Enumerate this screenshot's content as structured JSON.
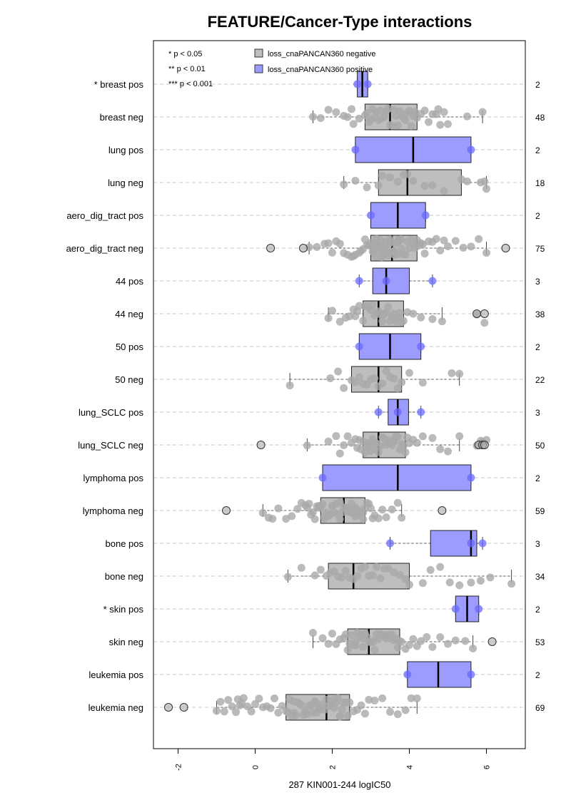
{
  "chart_data": {
    "type": "boxplot",
    "title": "FEATURE/Cancer-Type interactions",
    "xlabel": "287 KIN001-244 logIC50",
    "x_ticks": [
      "-2",
      "0",
      "2",
      "4",
      "6"
    ],
    "xlim": [
      -2.6,
      7.0
    ],
    "orientation": "horizontal",
    "grid": "horizontal dashed",
    "significance_legend": [
      "* p < 0.05",
      "** p < 0.01",
      "*** p < 0.001"
    ],
    "series_legend": [
      {
        "name": "loss_cnaPANCAN360 negative",
        "color": "#bebebe"
      },
      {
        "name": "loss_cnaPANCAN360 positive",
        "color": "#9c9cff"
      }
    ],
    "colors": {
      "negative_box": "#bebebe",
      "positive_box": "#9c9cff",
      "negative_point": "#a9a9a9",
      "positive_point": "#6868ff"
    },
    "groups": [
      {
        "label": "* breast pos",
        "n": "2",
        "status": "pos",
        "q1": 2.65,
        "median": 2.78,
        "q3": 2.92,
        "wlo": 2.65,
        "whi": 2.92,
        "points": [
          2.65,
          2.92
        ],
        "outliers": []
      },
      {
        "label": "breast neg",
        "n": "48",
        "status": "neg",
        "q1": 2.85,
        "median": 3.5,
        "q3": 4.2,
        "wlo": 1.5,
        "whi": 5.9,
        "points": [
          1.5,
          1.7,
          1.9,
          2.1,
          2.3,
          2.4,
          2.5,
          2.55,
          2.7,
          2.85,
          2.9,
          2.95,
          3.0,
          3.05,
          3.1,
          3.15,
          3.2,
          3.25,
          3.3,
          3.35,
          3.4,
          3.45,
          3.5,
          3.55,
          3.6,
          3.65,
          3.7,
          3.75,
          3.8,
          3.85,
          3.9,
          3.95,
          4.0,
          4.05,
          4.1,
          4.15,
          4.2,
          4.3,
          4.4,
          4.5,
          4.6,
          4.7,
          4.75,
          4.8,
          4.9,
          5.0,
          5.5,
          5.9
        ],
        "outliers": []
      },
      {
        "label": "lung pos",
        "n": "2",
        "status": "pos",
        "q1": 2.6,
        "median": 4.1,
        "q3": 5.6,
        "wlo": 2.6,
        "whi": 5.6,
        "points": [
          2.6,
          5.6
        ],
        "outliers": []
      },
      {
        "label": "lung neg",
        "n": "18",
        "status": "neg",
        "q1": 3.2,
        "median": 3.95,
        "q3": 5.35,
        "wlo": 2.3,
        "whi": 6.0,
        "points": [
          2.3,
          2.6,
          2.9,
          3.2,
          3.3,
          3.5,
          3.7,
          3.85,
          3.95,
          4.1,
          4.4,
          4.6,
          4.9,
          5.35,
          5.5,
          5.85,
          5.95,
          6.0
        ],
        "outliers": []
      },
      {
        "label": "aero_dig_tract pos",
        "n": "2",
        "status": "pos",
        "q1": 3.0,
        "median": 3.7,
        "q3": 4.42,
        "wlo": 3.0,
        "whi": 4.42,
        "points": [
          3.0,
          4.42
        ],
        "outliers": []
      },
      {
        "label": "aero_dig_tract neg",
        "n": "75",
        "status": "neg",
        "q1": 3.0,
        "median": 3.55,
        "q3": 4.2,
        "wlo": 1.4,
        "whi": 6.0,
        "points": [
          1.4,
          1.6,
          1.8,
          1.9,
          2.0,
          2.1,
          2.2,
          2.3,
          2.4,
          2.5,
          2.55,
          2.6,
          2.7,
          2.75,
          2.8,
          2.85,
          2.9,
          2.95,
          3.0,
          3.02,
          3.05,
          3.08,
          3.1,
          3.12,
          3.15,
          3.18,
          3.2,
          3.22,
          3.25,
          3.28,
          3.3,
          3.32,
          3.35,
          3.38,
          3.4,
          3.42,
          3.45,
          3.48,
          3.5,
          3.52,
          3.55,
          3.58,
          3.6,
          3.62,
          3.65,
          3.68,
          3.7,
          3.72,
          3.75,
          3.78,
          3.8,
          3.85,
          3.9,
          3.95,
          4.0,
          4.05,
          4.1,
          4.15,
          4.2,
          4.25,
          4.3,
          4.35,
          4.4,
          4.5,
          4.6,
          4.7,
          4.8,
          4.9,
          5.0,
          5.2,
          5.4,
          5.6,
          5.8,
          6.0,
          3.3
        ],
        "outliers": [
          0.4,
          1.25,
          6.5
        ]
      },
      {
        "label": "44 pos",
        "n": "3",
        "status": "pos",
        "q1": 3.05,
        "median": 3.4,
        "q3": 4.0,
        "wlo": 2.7,
        "whi": 4.6,
        "points": [
          2.7,
          3.4,
          4.6
        ],
        "outliers": []
      },
      {
        "label": "44 neg",
        "n": "38",
        "status": "neg",
        "q1": 2.8,
        "median": 3.2,
        "q3": 3.85,
        "wlo": 1.9,
        "whi": 4.85,
        "points": [
          1.9,
          2.0,
          2.2,
          2.35,
          2.45,
          2.55,
          2.65,
          2.7,
          2.8,
          2.85,
          2.9,
          2.95,
          3.0,
          3.05,
          3.1,
          3.15,
          3.2,
          3.25,
          3.3,
          3.35,
          3.4,
          3.45,
          3.5,
          3.55,
          3.6,
          3.65,
          3.7,
          3.75,
          3.8,
          3.85,
          3.95,
          4.1,
          4.3,
          4.6,
          4.85,
          5.75,
          5.95,
          2.6
        ],
        "outliers": [
          5.75,
          5.95
        ]
      },
      {
        "label": "50 pos",
        "n": "2",
        "status": "pos",
        "q1": 2.7,
        "median": 3.5,
        "q3": 4.3,
        "wlo": 2.7,
        "whi": 4.3,
        "points": [
          2.7,
          4.3
        ],
        "outliers": []
      },
      {
        "label": "50 neg",
        "n": "22",
        "status": "neg",
        "q1": 2.5,
        "median": 3.2,
        "q3": 3.8,
        "wlo": 0.9,
        "whi": 5.3,
        "points": [
          0.9,
          1.95,
          2.15,
          2.3,
          2.5,
          2.6,
          2.7,
          2.8,
          2.9,
          3.0,
          3.1,
          3.2,
          3.3,
          3.4,
          3.5,
          3.6,
          3.7,
          3.8,
          4.0,
          4.35,
          5.1,
          5.3
        ],
        "outliers": []
      },
      {
        "label": "lung_SCLC pos",
        "n": "3",
        "status": "pos",
        "q1": 3.45,
        "median": 3.7,
        "q3": 3.98,
        "wlo": 3.2,
        "whi": 4.3,
        "points": [
          3.2,
          3.7,
          4.3
        ],
        "outliers": []
      },
      {
        "label": "lung_SCLC neg",
        "n": "50",
        "status": "neg",
        "q1": 2.8,
        "median": 3.2,
        "q3": 3.9,
        "wlo": 1.35,
        "whi": 5.3,
        "points": [
          1.35,
          1.9,
          2.1,
          2.2,
          2.3,
          2.4,
          2.5,
          2.6,
          2.65,
          2.7,
          2.75,
          2.8,
          2.85,
          2.9,
          2.95,
          3.0,
          3.05,
          3.1,
          3.15,
          3.2,
          3.25,
          3.3,
          3.35,
          3.4,
          3.45,
          3.5,
          3.55,
          3.6,
          3.65,
          3.7,
          3.75,
          3.8,
          3.85,
          3.9,
          3.95,
          4.0,
          4.1,
          4.2,
          4.35,
          4.6,
          4.8,
          5.0,
          5.3,
          5.75,
          5.85,
          5.9,
          6.0,
          3.1,
          2.95,
          3.6
        ],
        "outliers": [
          0.15,
          5.8,
          5.9,
          5.95
        ]
      },
      {
        "label": "lymphoma pos",
        "n": "2",
        "status": "pos",
        "q1": 1.75,
        "median": 3.7,
        "q3": 5.6,
        "wlo": 1.75,
        "whi": 5.6,
        "points": [
          1.75,
          5.6
        ],
        "outliers": []
      },
      {
        "label": "lymphoma neg",
        "n": "59",
        "status": "neg",
        "q1": 1.7,
        "median": 2.3,
        "q3": 2.85,
        "wlo": 0.2,
        "whi": 3.8,
        "points": [
          0.2,
          0.35,
          0.45,
          0.6,
          0.8,
          0.95,
          1.1,
          1.2,
          1.3,
          1.4,
          1.45,
          1.5,
          1.55,
          1.6,
          1.65,
          1.7,
          1.75,
          1.8,
          1.85,
          1.9,
          1.95,
          2.0,
          2.05,
          2.1,
          2.15,
          2.2,
          2.25,
          2.3,
          2.35,
          2.4,
          2.45,
          2.5,
          2.55,
          2.6,
          2.65,
          2.7,
          2.75,
          2.8,
          2.85,
          2.9,
          2.95,
          3.0,
          3.05,
          3.1,
          3.2,
          3.3,
          3.4,
          3.55,
          3.7,
          3.8,
          1.35,
          1.65,
          2.0,
          2.2,
          2.4,
          2.6,
          2.8,
          1.8,
          2.5
        ],
        "outliers": [
          -0.75,
          4.85
        ]
      },
      {
        "label": "bone pos",
        "n": "3",
        "status": "pos",
        "q1": 4.55,
        "median": 5.6,
        "q3": 5.75,
        "wlo": 3.5,
        "whi": 5.9,
        "points": [
          3.5,
          5.6,
          5.9
        ],
        "outliers": []
      },
      {
        "label": "bone neg",
        "n": "34",
        "status": "neg",
        "q1": 1.9,
        "median": 2.55,
        "q3": 4.0,
        "wlo": 0.85,
        "whi": 6.65,
        "points": [
          0.85,
          1.2,
          1.55,
          1.7,
          1.85,
          1.95,
          2.05,
          2.15,
          2.25,
          2.35,
          2.45,
          2.55,
          2.65,
          2.75,
          2.85,
          2.95,
          3.05,
          3.15,
          3.25,
          3.35,
          3.45,
          3.6,
          3.75,
          3.9,
          4.0,
          4.35,
          4.55,
          4.8,
          5.05,
          5.3,
          5.6,
          5.85,
          6.1,
          6.65
        ],
        "outliers": []
      },
      {
        "label": "* skin pos",
        "n": "2",
        "status": "pos",
        "q1": 5.2,
        "median": 5.5,
        "q3": 5.8,
        "wlo": 5.2,
        "whi": 5.8,
        "points": [
          5.2,
          5.8
        ],
        "outliers": []
      },
      {
        "label": "skin neg",
        "n": "53",
        "status": "neg",
        "q1": 2.4,
        "median": 2.95,
        "q3": 3.75,
        "wlo": 1.5,
        "whi": 5.65,
        "points": [
          1.5,
          1.75,
          1.9,
          2.0,
          2.1,
          2.2,
          2.3,
          2.4,
          2.45,
          2.5,
          2.55,
          2.6,
          2.65,
          2.7,
          2.75,
          2.8,
          2.85,
          2.9,
          2.95,
          3.0,
          3.05,
          3.1,
          3.15,
          3.2,
          3.25,
          3.3,
          3.35,
          3.4,
          3.45,
          3.5,
          3.55,
          3.6,
          3.65,
          3.7,
          3.75,
          3.8,
          3.9,
          4.0,
          4.1,
          4.2,
          4.3,
          4.45,
          4.6,
          4.8,
          5.0,
          5.2,
          5.45,
          5.65,
          2.35,
          2.6,
          3.1,
          3.4,
          2.8
        ],
        "outliers": [
          6.15
        ]
      },
      {
        "label": "leukemia pos",
        "n": "2",
        "status": "pos",
        "q1": 3.95,
        "median": 4.75,
        "q3": 5.6,
        "wlo": 3.95,
        "whi": 5.6,
        "points": [
          3.95,
          5.6
        ],
        "outliers": []
      },
      {
        "label": "leukemia neg",
        "n": "69",
        "status": "neg",
        "q1": 0.8,
        "median": 1.85,
        "q3": 2.45,
        "wlo": -1.0,
        "whi": 4.2,
        "points": [
          -1.0,
          -0.9,
          -0.8,
          -0.7,
          -0.6,
          -0.5,
          -0.45,
          -0.4,
          -0.35,
          -0.3,
          -0.2,
          -0.1,
          0.0,
          0.1,
          0.2,
          0.3,
          0.4,
          0.5,
          0.6,
          0.7,
          0.8,
          0.85,
          0.9,
          0.95,
          1.0,
          1.05,
          1.1,
          1.15,
          1.2,
          1.25,
          1.3,
          1.35,
          1.4,
          1.45,
          1.5,
          1.55,
          1.6,
          1.65,
          1.7,
          1.75,
          1.8,
          1.85,
          1.9,
          1.95,
          2.0,
          2.05,
          2.1,
          2.15,
          2.2,
          2.25,
          2.3,
          2.35,
          2.4,
          2.45,
          2.55,
          2.65,
          2.75,
          2.85,
          2.95,
          3.1,
          3.3,
          3.5,
          3.7,
          3.9,
          4.05,
          4.2,
          1.0,
          1.6,
          2.2
        ],
        "outliers": [
          -2.25,
          -1.85
        ]
      }
    ]
  }
}
